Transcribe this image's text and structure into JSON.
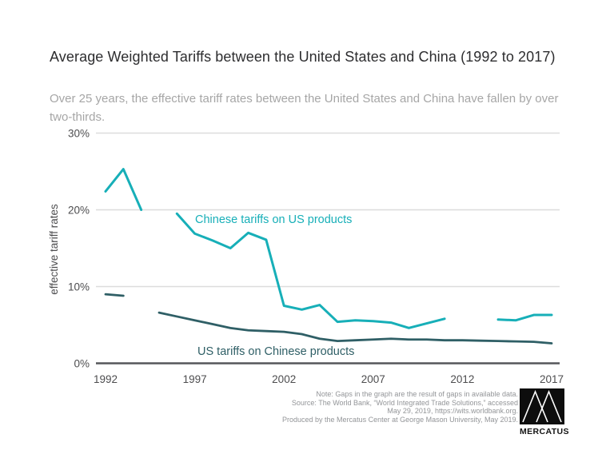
{
  "header": {
    "title": "Average Weighted Tariffs between the United States and China (1992 to 2017)",
    "subtitle": "Over 25 years, the effective tariff rates between the United States and China have fallen by over two-thirds."
  },
  "chart_data": {
    "type": "line",
    "x": [
      1992,
      1993,
      1994,
      1995,
      1996,
      1997,
      1998,
      1999,
      2000,
      2001,
      2002,
      2003,
      2004,
      2005,
      2006,
      2007,
      2008,
      2009,
      2010,
      2011,
      2012,
      2013,
      2014,
      2015,
      2016,
      2017
    ],
    "x_ticks": [
      1992,
      1997,
      2002,
      2007,
      2012,
      2017
    ],
    "y_ticks": [
      0,
      10,
      20,
      30
    ],
    "y_tick_suffix": "%",
    "ylabel": "effective tariff rates",
    "ylim": [
      0,
      30
    ],
    "grid": true,
    "gaps_note": "null values are gaps in available data",
    "series": [
      {
        "name": "Chinese tariffs on US products",
        "color": "#17afb8",
        "values": [
          22.4,
          25.3,
          20.0,
          null,
          19.5,
          16.9,
          16.0,
          15.0,
          17.0,
          16.1,
          7.5,
          7.0,
          7.6,
          5.4,
          5.6,
          5.5,
          5.3,
          4.6,
          5.2,
          5.8,
          null,
          null,
          5.7,
          5.6,
          6.3,
          6.3
        ]
      },
      {
        "name": "US tariffs on Chinese products",
        "color": "#2f5f66",
        "values": [
          9.0,
          8.8,
          null,
          6.6,
          6.1,
          5.6,
          5.1,
          4.6,
          4.3,
          4.2,
          4.1,
          3.8,
          3.2,
          2.9,
          3.0,
          3.1,
          3.2,
          3.1,
          3.1,
          3.0,
          3.0,
          2.95,
          2.9,
          2.85,
          2.8,
          2.6
        ]
      }
    ]
  },
  "note": {
    "lines": [
      "Note: Gaps in the graph are the result of gaps in available data.",
      "Source: The World Bank, “World Integrated Trade Solutions,” accessed",
      "May 29, 2019, https://wits.worldbank.org.",
      "Produced by the Mercatus Center at George Mason University, May 2019."
    ]
  },
  "logo": {
    "wordmark": "MERCATUS"
  },
  "colors": {
    "teal": "#17afb8",
    "slate": "#2f5f66",
    "grid": "#dcdcdc",
    "axis": "#55565a",
    "tick_text": "#4d4d4f",
    "title_text": "#2d2d2f",
    "subtitle_text": "#a6a6a6",
    "note_text": "#939598"
  }
}
